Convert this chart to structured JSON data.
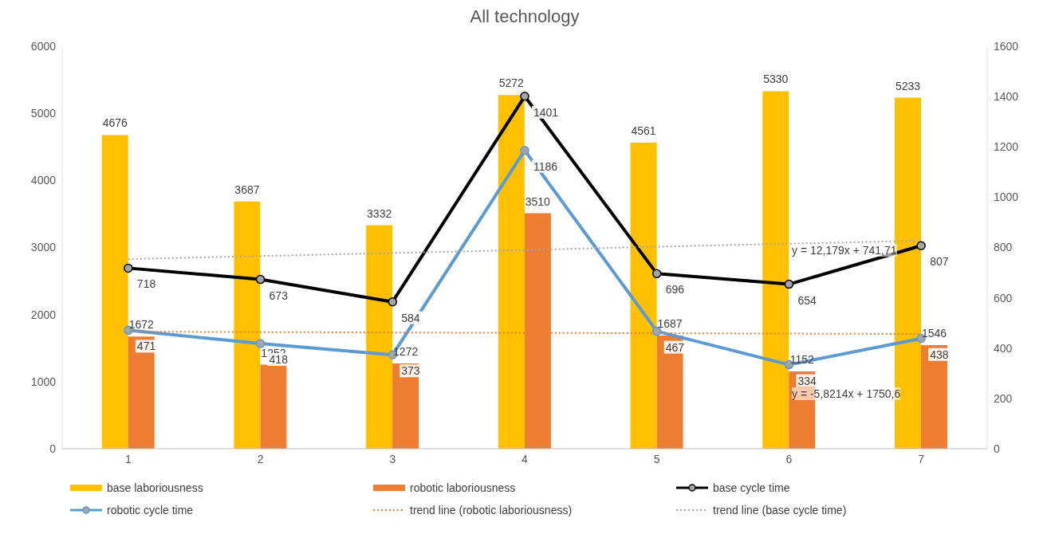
{
  "chart_data": {
    "type": "bar",
    "title": "All technology",
    "categories": [
      "1",
      "2",
      "3",
      "4",
      "5",
      "6",
      "7"
    ],
    "series": [
      {
        "name": "base laboriousness",
        "color": "#ffc000",
        "values": [
          4676,
          3687,
          3332,
          5272,
          4561,
          5330,
          5233
        ]
      },
      {
        "name": "robotic laboriousness",
        "color": "#ed7d31",
        "values": [
          1672,
          1252,
          1272,
          3510,
          1687,
          1152,
          1546
        ]
      },
      {
        "name": "base cycle time",
        "type": "line",
        "axis": "y2",
        "color": "#000000",
        "marker": "circle",
        "line_style": "solid",
        "values": [
          718,
          673,
          584,
          1401,
          696,
          654,
          807
        ]
      },
      {
        "name": "robotic cycle time",
        "type": "line",
        "axis": "y2",
        "color": "#5b9bd5",
        "marker": "circle",
        "line_style": "solid",
        "values": [
          471,
          418,
          373,
          1186,
          467,
          334,
          438
        ]
      },
      {
        "name": "trend line (robotic laboriousness)",
        "type": "line",
        "color": "#ed7d31",
        "marker": "none",
        "line_style": "dotted",
        "data_labels": false,
        "values": [
          1745,
          1739,
          1733,
          1727,
          1722,
          1716,
          1710
        ]
      },
      {
        "name": "trend line (base cycle time)",
        "type": "line",
        "axis": "y2",
        "color": "#a5a5a5",
        "marker": "none",
        "line_style": "dotted",
        "data_labels": false,
        "values": [
          754,
          766,
          778,
          790,
          803,
          815,
          827
        ]
      }
    ],
    "ylim": [
      0,
      6000
    ],
    "yticks": [
      0,
      1000,
      2000,
      3000,
      4000,
      5000,
      6000
    ],
    "y2lim": [
      0,
      1600
    ],
    "y2ticks": [
      0,
      200,
      400,
      600,
      800,
      1000,
      1200,
      1400,
      1600
    ],
    "annotations": [
      "y = 12,179x + 741,71",
      "y = -5,8214x + 1750,6"
    ],
    "data_labels": true,
    "legend": "bottom"
  }
}
